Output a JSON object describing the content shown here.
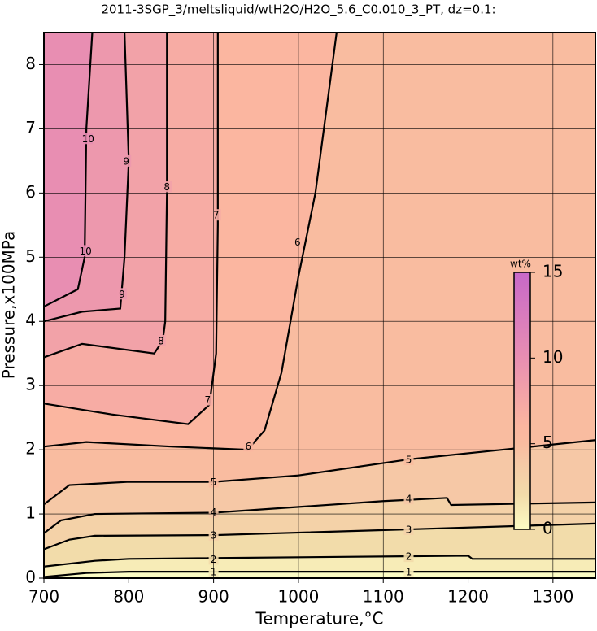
{
  "chart_data": {
    "type": "contour",
    "title": "2011-3SGP_3/meltsliquid/wtH2O/H2O_5.6_C0.010_3_PT, dz=0.1:",
    "x_label": "Temperature,°C",
    "y_label": "Pressure,x100MPa",
    "xlim": [
      700,
      1350
    ],
    "ylim": [
      0,
      8.5
    ],
    "xticks": [
      700,
      800,
      900,
      1000,
      1100,
      1200,
      1300
    ],
    "yticks": [
      0,
      1,
      2,
      3,
      4,
      5,
      6,
      7,
      8
    ],
    "grid": true,
    "colormap": [
      [
        0,
        "#fcfcc4"
      ],
      [
        2,
        "#f2dcaa"
      ],
      [
        4,
        "#f6c8a6"
      ],
      [
        5,
        "#f9bca0"
      ],
      [
        6,
        "#fbb6a0"
      ],
      [
        8,
        "#f2a2a8"
      ],
      [
        10,
        "#e88eb2"
      ],
      [
        15,
        "#c868c8"
      ]
    ],
    "colorbar": {
      "label": "wt%",
      "lim": [
        0,
        15
      ],
      "ticks": [
        0,
        5,
        10,
        15
      ]
    },
    "contours": [
      {
        "level": 1,
        "x": [
          700,
          750,
          800,
          1350
        ],
        "y": [
          0.02,
          0.08,
          0.1,
          0.1
        ],
        "labels": [
          [
            900,
            0.1
          ],
          [
            1130,
            0.1
          ]
        ]
      },
      {
        "level": 2,
        "x": [
          700,
          760,
          800,
          1200,
          1205,
          1350
        ],
        "y": [
          0.18,
          0.27,
          0.3,
          0.35,
          0.3,
          0.3
        ],
        "labels": [
          [
            900,
            0.3
          ],
          [
            1130,
            0.34
          ]
        ]
      },
      {
        "level": 3,
        "x": [
          700,
          730,
          760,
          900,
          1130,
          1350
        ],
        "y": [
          0.45,
          0.6,
          0.66,
          0.67,
          0.76,
          0.85
        ],
        "labels": [
          [
            900,
            0.67
          ],
          [
            1130,
            0.76
          ]
        ]
      },
      {
        "level": 4,
        "x": [
          700,
          720,
          760,
          900,
          1100,
          1175,
          1180,
          1350
        ],
        "y": [
          0.7,
          0.9,
          1.0,
          1.02,
          1.2,
          1.25,
          1.14,
          1.18
        ],
        "labels": [
          [
            900,
            1.03
          ],
          [
            1130,
            1.24
          ]
        ]
      },
      {
        "level": 5,
        "x": [
          700,
          730,
          800,
          900,
          1000,
          1130,
          1350
        ],
        "y": [
          1.15,
          1.45,
          1.5,
          1.5,
          1.6,
          1.85,
          2.15
        ],
        "labels": [
          [
            900,
            1.5
          ],
          [
            1130,
            1.85
          ]
        ]
      },
      {
        "level": 6,
        "x": [
          700,
          750,
          850,
          940,
          960,
          980,
          1000,
          1020,
          1045
        ],
        "y": [
          2.05,
          2.12,
          2.05,
          2.0,
          2.3,
          3.2,
          4.7,
          6.0,
          8.5
        ],
        "labels": [
          [
            941,
            2.06
          ],
          [
            999,
            5.24
          ]
        ]
      },
      {
        "level": 7,
        "x": [
          700,
          780,
          870,
          895,
          903,
          905,
          905
        ],
        "y": [
          2.72,
          2.55,
          2.4,
          2.7,
          3.5,
          5.5,
          8.5
        ],
        "labels": [
          [
            893,
            2.78
          ],
          [
            903,
            5.66
          ]
        ]
      },
      {
        "level": 8,
        "x": [
          700,
          745,
          830,
          840,
          843,
          845,
          845
        ],
        "y": [
          3.44,
          3.65,
          3.5,
          3.7,
          4.0,
          6.0,
          8.5
        ],
        "labels": [
          [
            838,
            3.7
          ],
          [
            845,
            6.1
          ]
        ]
      },
      {
        "level": 9,
        "x": [
          700,
          745,
          790,
          795,
          800,
          795
        ],
        "y": [
          4.0,
          4.15,
          4.2,
          5.0,
          6.5,
          8.5
        ],
        "labels": [
          [
            792,
            4.43
          ],
          [
            797,
            6.5
          ]
        ]
      },
      {
        "level": 10,
        "x": [
          700,
          740,
          748,
          750,
          757
        ],
        "y": [
          4.23,
          4.5,
          5.0,
          7.0,
          8.5
        ],
        "labels": [
          [
            749,
            5.1
          ],
          [
            752,
            6.85
          ]
        ]
      }
    ]
  }
}
